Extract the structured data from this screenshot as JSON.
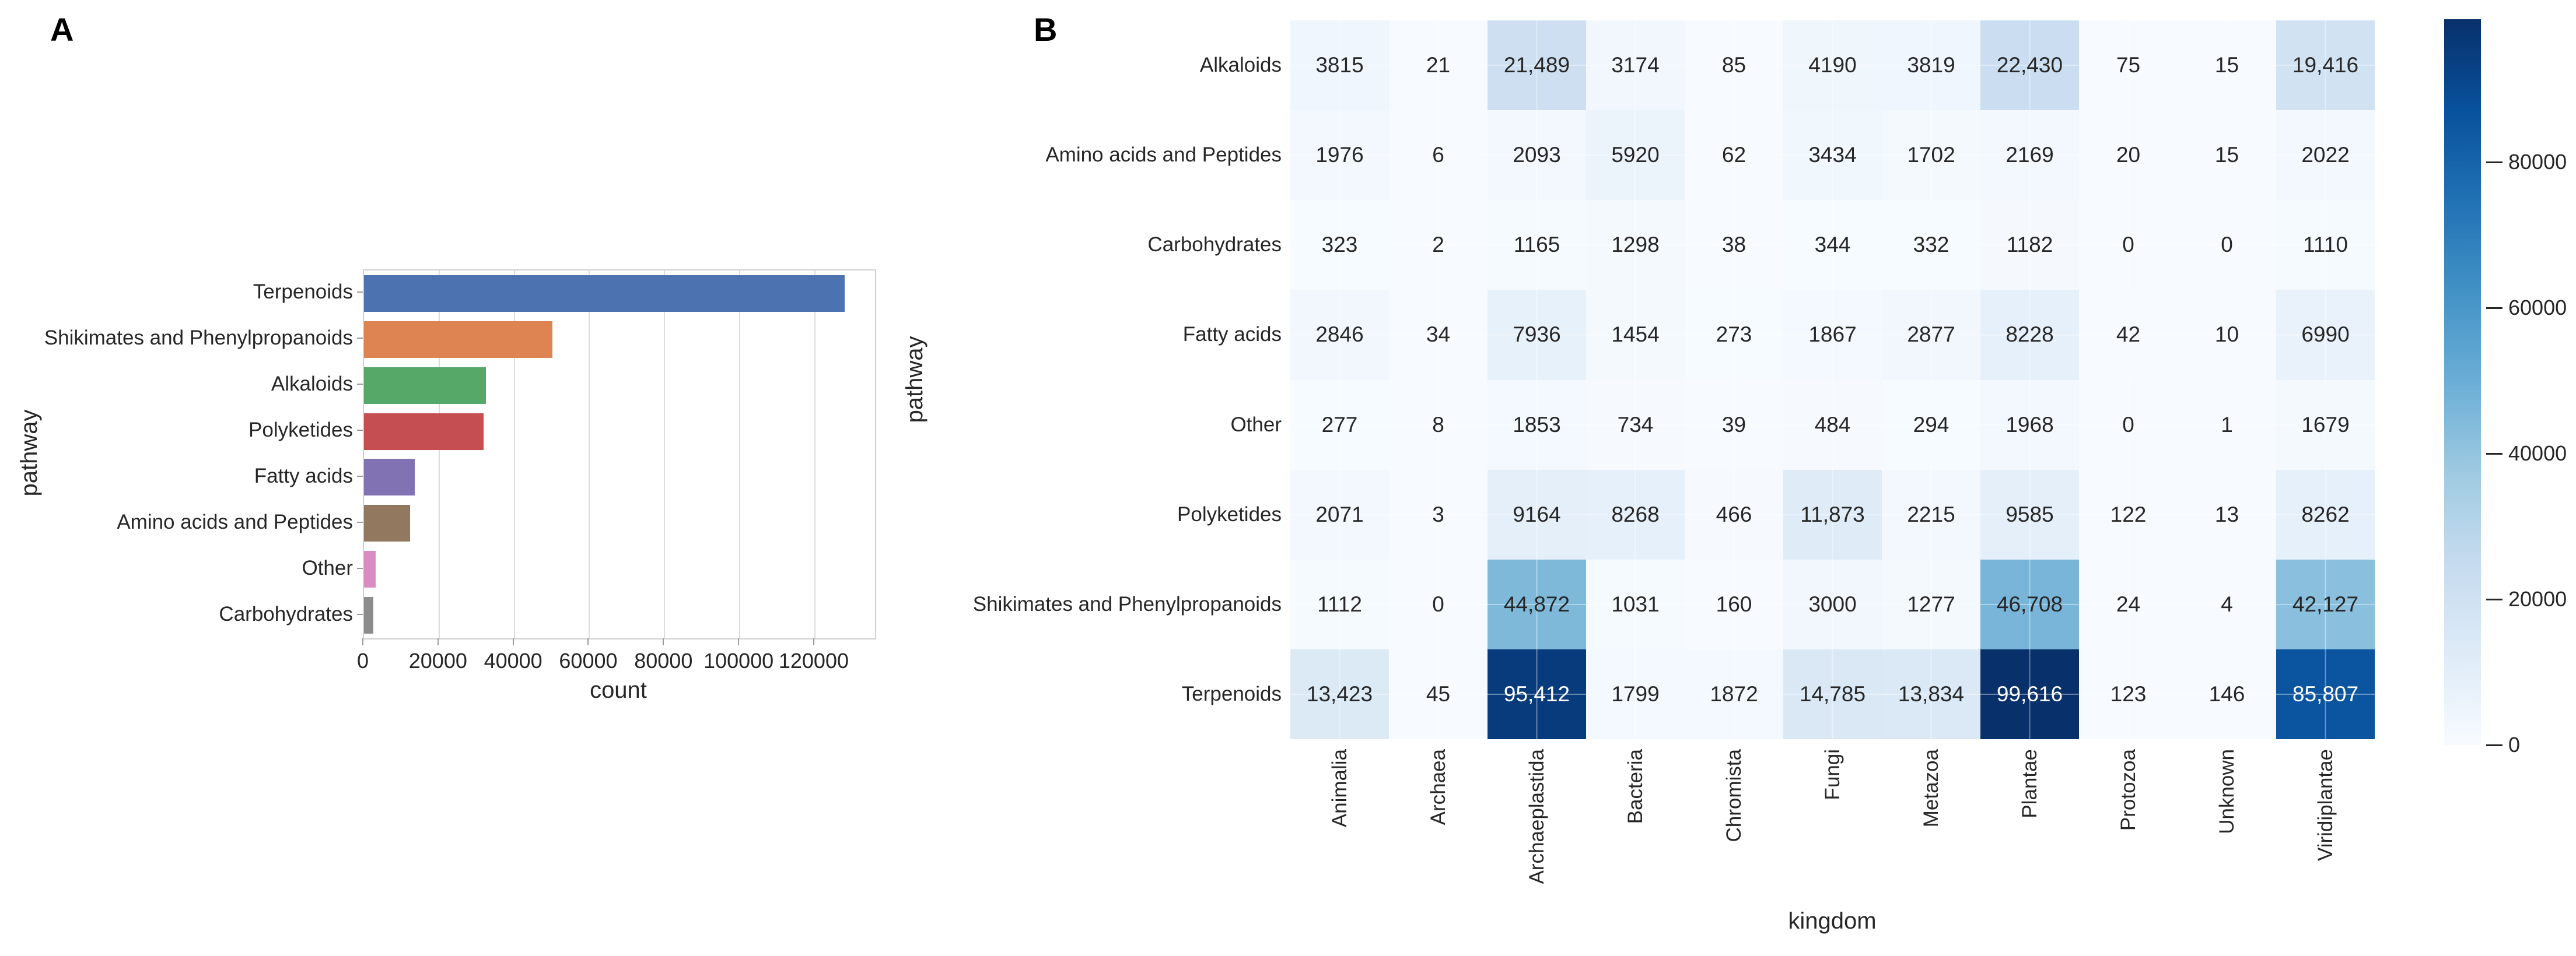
{
  "figure": {
    "panel_a_letter": "A",
    "panel_b_letter": "B"
  },
  "chart_data": [
    {
      "panel": "A",
      "type": "bar",
      "orientation": "horizontal",
      "title": "",
      "xlabel": "count",
      "ylabel": "pathway",
      "categories": [
        "Terpenoids",
        "Shikimates and Phenylpropanoids",
        "Alkaloids",
        "Polyketides",
        "Fatty acids",
        "Amino acids and Peptides",
        "Other",
        "Carbohydrates"
      ],
      "values": [
        128000,
        50200,
        32500,
        31800,
        13450,
        12300,
        3100,
        2550
      ],
      "bar_colors": [
        "#4c72b0",
        "#dd8452",
        "#55a868",
        "#c44e52",
        "#8172b3",
        "#937860",
        "#da8bc3",
        "#8c8c8c"
      ],
      "xticks": [
        0,
        20000,
        40000,
        60000,
        80000,
        100000,
        120000
      ],
      "xlim": [
        0,
        136000
      ],
      "grid": true
    },
    {
      "panel": "B",
      "type": "heatmap",
      "title": "",
      "xlabel": "kingdom",
      "ylabel": "pathway",
      "rows": [
        "Alkaloids",
        "Amino acids and Peptides",
        "Carbohydrates",
        "Fatty acids",
        "Other",
        "Polyketides",
        "Shikimates and Phenylpropanoids",
        "Terpenoids"
      ],
      "cols": [
        "Animalia",
        "Archaea",
        "Archaeplastida",
        "Bacteria",
        "Chromista",
        "Fungi",
        "Metazoa",
        "Plantae",
        "Protozoa",
        "Unknown",
        "Viridiplantae"
      ],
      "values": [
        [
          3815,
          21,
          21489,
          3174,
          85,
          4190,
          3819,
          22430,
          75,
          15,
          19416
        ],
        [
          1976,
          6,
          2093,
          5920,
          62,
          3434,
          1702,
          2169,
          20,
          15,
          2022
        ],
        [
          323,
          2,
          1165,
          1298,
          38,
          344,
          332,
          1182,
          0,
          0,
          1110
        ],
        [
          2846,
          34,
          7936,
          1454,
          273,
          1867,
          2877,
          8228,
          42,
          10,
          6990
        ],
        [
          277,
          8,
          1853,
          734,
          39,
          484,
          294,
          1968,
          0,
          1,
          1679
        ],
        [
          2071,
          3,
          9164,
          8268,
          466,
          11873,
          2215,
          9585,
          122,
          13,
          8262
        ],
        [
          1112,
          0,
          44872,
          1031,
          160,
          3000,
          1277,
          46708,
          24,
          4,
          42127
        ],
        [
          13423,
          45,
          95412,
          1799,
          1872,
          14785,
          13834,
          99616,
          123,
          146,
          85807
        ]
      ],
      "colormap": "Blues",
      "vmin": 0,
      "vmax": 99616,
      "colorbar_ticks": [
        0,
        20000,
        40000,
        60000,
        80000
      ],
      "legend_position": "right"
    }
  ],
  "colors": {
    "text": "#262626",
    "gridline": "#dcdcdc",
    "spine": "#cfcfcf",
    "heatmap_dark_text": "#ffffff",
    "blues_scale": [
      "#f7fbff",
      "#deebf7",
      "#c6dbef",
      "#9ecae1",
      "#6baed6",
      "#4292c6",
      "#2171b5",
      "#08519c",
      "#08306b"
    ]
  }
}
